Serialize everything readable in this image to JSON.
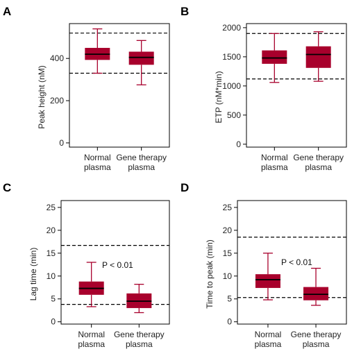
{
  "colors": {
    "box_fill": "#a8002c",
    "whisker": "#a8002c",
    "median": "#000000",
    "frame": "#000000",
    "ref_line": "#000000"
  },
  "chart_data": [
    {
      "panel": "A",
      "type": "box",
      "ylabel": "Peak height (nM)",
      "yticks": [
        0,
        200,
        400
      ],
      "ylim": [
        -20,
        565
      ],
      "categories": [
        [
          "Normal",
          "plasma"
        ],
        [
          "Gene therapy",
          "plasma"
        ]
      ],
      "boxes": [
        {
          "min": 330,
          "q1": 393,
          "median": 420,
          "q3": 450,
          "max": 540
        },
        {
          "min": 275,
          "q1": 370,
          "median": 405,
          "q3": 432,
          "max": 485
        }
      ],
      "reference_lines": [
        330,
        520
      ],
      "annotation": ""
    },
    {
      "panel": "B",
      "type": "box",
      "ylabel": "ETP (nM*min)",
      "yticks": [
        0,
        500,
        1000,
        1500,
        2000
      ],
      "ylim": [
        -50,
        2070
      ],
      "categories": [
        [
          "Normal",
          "plasma"
        ],
        [
          "Gene therapy",
          "plasma"
        ]
      ],
      "boxes": [
        {
          "min": 1060,
          "q1": 1380,
          "median": 1480,
          "q3": 1610,
          "max": 1900
        },
        {
          "min": 1080,
          "q1": 1310,
          "median": 1540,
          "q3": 1680,
          "max": 1930
        }
      ],
      "reference_lines": [
        1120,
        1900
      ],
      "annotation": ""
    },
    {
      "panel": "C",
      "type": "box",
      "ylabel": "Lag time (min)",
      "yticks": [
        0,
        5,
        10,
        15,
        20,
        25
      ],
      "ylim": [
        -0.5,
        26.5
      ],
      "categories": [
        [
          "Normal",
          "plasma"
        ],
        [
          "Gene therapy",
          "plasma"
        ]
      ],
      "boxes": [
        {
          "min": 3.3,
          "q1": 5.9,
          "median": 7.3,
          "q3": 8.8,
          "max": 13.0
        },
        {
          "min": 2.0,
          "q1": 3.0,
          "median": 4.5,
          "q3": 6.2,
          "max": 8.2
        }
      ],
      "reference_lines": [
        3.8,
        16.7
      ],
      "annotation": "P < 0.01"
    },
    {
      "panel": "D",
      "type": "box",
      "ylabel": "Time to peak (min)",
      "yticks": [
        0,
        5,
        10,
        15,
        20,
        25
      ],
      "ylim": [
        -0.5,
        26.5
      ],
      "categories": [
        [
          "Normal",
          "plasma"
        ],
        [
          "Gene therapy",
          "plasma"
        ]
      ],
      "boxes": [
        {
          "min": 4.8,
          "q1": 7.4,
          "median": 9.2,
          "q3": 10.4,
          "max": 15.0
        },
        {
          "min": 3.6,
          "q1": 4.7,
          "median": 6.0,
          "q3": 7.6,
          "max": 11.7
        }
      ],
      "reference_lines": [
        5.3,
        18.5
      ],
      "annotation": "P < 0.01"
    }
  ]
}
